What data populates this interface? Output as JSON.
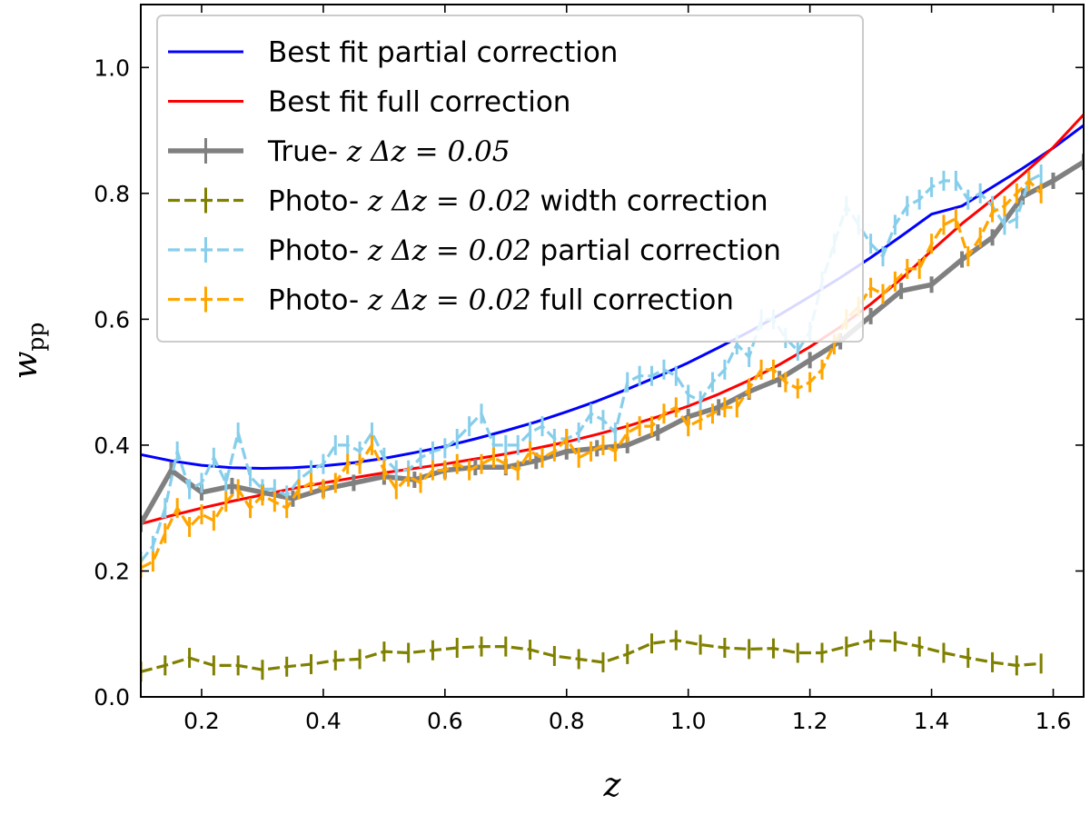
{
  "chart_data": {
    "type": "line",
    "xlabel": "z",
    "ylabel_main": "w",
    "ylabel_sub": "pp",
    "xlim": [
      0.1,
      1.65
    ],
    "ylim": [
      0.0,
      1.1
    ],
    "xticks": [
      0.2,
      0.4,
      0.6,
      0.8,
      1.0,
      1.2,
      1.4,
      1.6
    ],
    "xtick_labels": [
      "0.2",
      "0.4",
      "0.6",
      "0.8",
      "1.0",
      "1.2",
      "1.4",
      "1.6"
    ],
    "yticks": [
      0.0,
      0.2,
      0.4,
      0.6,
      0.8,
      1.0
    ],
    "ytick_labels": [
      "0.0",
      "0.2",
      "0.4",
      "0.6",
      "0.8",
      "1.0"
    ],
    "legend_position": "top-left",
    "series": [
      {
        "name": "Best fit partial correction",
        "legend": {
          "pre": "Best fit partial correction",
          "math": "",
          "post": ""
        },
        "color": "#0000ff",
        "style": "solid",
        "x": [
          0.1,
          0.15,
          0.2,
          0.25,
          0.3,
          0.35,
          0.4,
          0.45,
          0.5,
          0.55,
          0.6,
          0.65,
          0.7,
          0.75,
          0.8,
          0.85,
          0.9,
          0.95,
          1.0,
          1.05,
          1.1,
          1.15,
          1.2,
          1.25,
          1.3,
          1.35,
          1.4,
          1.45,
          1.5,
          1.55,
          1.6,
          1.65
        ],
        "y": [
          0.385,
          0.375,
          0.368,
          0.364,
          0.363,
          0.364,
          0.367,
          0.372,
          0.379,
          0.388,
          0.398,
          0.41,
          0.423,
          0.437,
          0.453,
          0.47,
          0.489,
          0.509,
          0.531,
          0.555,
          0.58,
          0.607,
          0.636,
          0.666,
          0.698,
          0.732,
          0.767,
          0.78,
          0.81,
          0.84,
          0.872,
          0.908
        ]
      },
      {
        "name": "Best fit full correction",
        "legend": {
          "pre": "Best fit full correction",
          "math": "",
          "post": ""
        },
        "color": "#ff0000",
        "style": "solid",
        "x": [
          0.1,
          0.15,
          0.2,
          0.25,
          0.3,
          0.35,
          0.4,
          0.45,
          0.5,
          0.55,
          0.6,
          0.65,
          0.7,
          0.75,
          0.8,
          0.85,
          0.9,
          0.95,
          1.0,
          1.05,
          1.1,
          1.15,
          1.2,
          1.25,
          1.3,
          1.35,
          1.4,
          1.45,
          1.5,
          1.55,
          1.6,
          1.65
        ],
        "y": [
          0.275,
          0.288,
          0.3,
          0.311,
          0.321,
          0.331,
          0.34,
          0.348,
          0.356,
          0.363,
          0.37,
          0.378,
          0.386,
          0.395,
          0.405,
          0.417,
          0.43,
          0.445,
          0.462,
          0.481,
          0.503,
          0.528,
          0.556,
          0.588,
          0.624,
          0.664,
          0.709,
          0.752,
          0.79,
          0.83,
          0.873,
          0.925
        ]
      },
      {
        "name": "True-z Δz=0.05",
        "legend": {
          "pre": "True-",
          "math": "z Δz = 0.05",
          "post": ""
        },
        "color": "#808080",
        "style": "solid-thick",
        "x": [
          0.1,
          0.15,
          0.2,
          0.25,
          0.3,
          0.35,
          0.4,
          0.45,
          0.5,
          0.55,
          0.6,
          0.65,
          0.7,
          0.75,
          0.8,
          0.85,
          0.9,
          0.95,
          1.0,
          1.05,
          1.1,
          1.15,
          1.2,
          1.25,
          1.3,
          1.35,
          1.4,
          1.45,
          1.5,
          1.55,
          1.6,
          1.65
        ],
        "y": [
          0.275,
          0.36,
          0.325,
          0.335,
          0.325,
          0.315,
          0.33,
          0.34,
          0.35,
          0.345,
          0.36,
          0.365,
          0.365,
          0.375,
          0.39,
          0.395,
          0.4,
          0.42,
          0.445,
          0.46,
          0.485,
          0.505,
          0.535,
          0.565,
          0.605,
          0.645,
          0.655,
          0.695,
          0.73,
          0.795,
          0.82,
          0.85
        ]
      },
      {
        "name": "Photo-z Δz=0.02 width correction",
        "legend": {
          "pre": "Photo-",
          "math": "z Δz = 0.02",
          "post": " width correction"
        },
        "color": "#808000",
        "style": "dashed",
        "x": [
          0.1,
          0.14,
          0.18,
          0.22,
          0.26,
          0.3,
          0.34,
          0.38,
          0.42,
          0.46,
          0.5,
          0.54,
          0.58,
          0.62,
          0.66,
          0.7,
          0.74,
          0.78,
          0.82,
          0.86,
          0.9,
          0.94,
          0.98,
          1.02,
          1.06,
          1.1,
          1.14,
          1.18,
          1.22,
          1.26,
          1.3,
          1.34,
          1.38,
          1.42,
          1.46,
          1.5,
          1.54,
          1.58
        ],
        "y": [
          0.04,
          0.05,
          0.062,
          0.05,
          0.05,
          0.043,
          0.048,
          0.052,
          0.058,
          0.06,
          0.072,
          0.07,
          0.074,
          0.078,
          0.08,
          0.08,
          0.075,
          0.065,
          0.06,
          0.055,
          0.068,
          0.085,
          0.09,
          0.083,
          0.078,
          0.076,
          0.077,
          0.07,
          0.07,
          0.08,
          0.09,
          0.088,
          0.08,
          0.07,
          0.062,
          0.055,
          0.05,
          0.053
        ]
      },
      {
        "name": "Photo-z Δz=0.02 partial correction",
        "legend": {
          "pre": "Photo-",
          "math": "z Δz = 0.02",
          "post": " partial correction"
        },
        "color": "#87ceeb",
        "style": "dashed",
        "x": [
          0.1,
          0.12,
          0.14,
          0.16,
          0.18,
          0.2,
          0.22,
          0.24,
          0.26,
          0.28,
          0.3,
          0.32,
          0.34,
          0.36,
          0.38,
          0.4,
          0.42,
          0.44,
          0.46,
          0.48,
          0.5,
          0.52,
          0.54,
          0.56,
          0.58,
          0.6,
          0.62,
          0.64,
          0.66,
          0.68,
          0.7,
          0.72,
          0.74,
          0.76,
          0.78,
          0.8,
          0.82,
          0.84,
          0.86,
          0.88,
          0.9,
          0.92,
          0.94,
          0.96,
          0.98,
          1.0,
          1.02,
          1.04,
          1.06,
          1.08,
          1.1,
          1.12,
          1.14,
          1.16,
          1.18,
          1.2,
          1.22,
          1.24,
          1.26,
          1.28,
          1.3,
          1.32,
          1.34,
          1.36,
          1.38,
          1.4,
          1.42,
          1.44,
          1.46,
          1.48,
          1.5,
          1.52,
          1.54,
          1.56,
          1.58
        ],
        "y": [
          0.215,
          0.24,
          0.3,
          0.39,
          0.33,
          0.34,
          0.38,
          0.34,
          0.42,
          0.35,
          0.33,
          0.33,
          0.32,
          0.345,
          0.36,
          0.37,
          0.4,
          0.4,
          0.39,
          0.42,
          0.38,
          0.36,
          0.36,
          0.38,
          0.39,
          0.395,
          0.41,
          0.43,
          0.45,
          0.4,
          0.4,
          0.4,
          0.42,
          0.43,
          0.41,
          0.41,
          0.42,
          0.45,
          0.44,
          0.42,
          0.5,
          0.51,
          0.51,
          0.52,
          0.51,
          0.48,
          0.47,
          0.5,
          0.52,
          0.56,
          0.54,
          0.6,
          0.6,
          0.57,
          0.55,
          0.58,
          0.66,
          0.72,
          0.78,
          0.75,
          0.72,
          0.7,
          0.75,
          0.78,
          0.79,
          0.81,
          0.82,
          0.82,
          0.79,
          0.8,
          0.78,
          0.75,
          0.76,
          0.82,
          0.83
        ]
      },
      {
        "name": "Photo-z Δz=0.02 full correction",
        "legend": {
          "pre": "Photo-",
          "math": "z Δz = 0.02",
          "post": " full correction"
        },
        "color": "#ffa500",
        "style": "dashed",
        "x": [
          0.1,
          0.12,
          0.14,
          0.16,
          0.18,
          0.2,
          0.22,
          0.24,
          0.26,
          0.28,
          0.3,
          0.32,
          0.34,
          0.36,
          0.38,
          0.4,
          0.42,
          0.44,
          0.46,
          0.48,
          0.5,
          0.52,
          0.54,
          0.56,
          0.58,
          0.6,
          0.62,
          0.64,
          0.66,
          0.68,
          0.7,
          0.72,
          0.74,
          0.76,
          0.78,
          0.8,
          0.82,
          0.84,
          0.86,
          0.88,
          0.9,
          0.92,
          0.94,
          0.96,
          0.98,
          1.0,
          1.02,
          1.04,
          1.06,
          1.08,
          1.1,
          1.12,
          1.14,
          1.16,
          1.18,
          1.2,
          1.22,
          1.24,
          1.26,
          1.28,
          1.3,
          1.32,
          1.34,
          1.36,
          1.38,
          1.4,
          1.42,
          1.44,
          1.46,
          1.48,
          1.5,
          1.52,
          1.54,
          1.56,
          1.58
        ],
        "y": [
          0.205,
          0.215,
          0.26,
          0.3,
          0.27,
          0.29,
          0.28,
          0.31,
          0.33,
          0.3,
          0.32,
          0.31,
          0.3,
          0.33,
          0.34,
          0.33,
          0.34,
          0.37,
          0.37,
          0.4,
          0.36,
          0.33,
          0.35,
          0.34,
          0.36,
          0.36,
          0.37,
          0.36,
          0.37,
          0.38,
          0.37,
          0.36,
          0.39,
          0.38,
          0.39,
          0.41,
          0.38,
          0.39,
          0.4,
          0.39,
          0.42,
          0.43,
          0.43,
          0.45,
          0.46,
          0.43,
          0.44,
          0.45,
          0.46,
          0.46,
          0.49,
          0.52,
          0.52,
          0.5,
          0.49,
          0.5,
          0.52,
          0.56,
          0.6,
          0.62,
          0.65,
          0.64,
          0.66,
          0.68,
          0.68,
          0.72,
          0.75,
          0.76,
          0.7,
          0.73,
          0.77,
          0.78,
          0.8,
          0.82,
          0.8
        ]
      }
    ]
  }
}
